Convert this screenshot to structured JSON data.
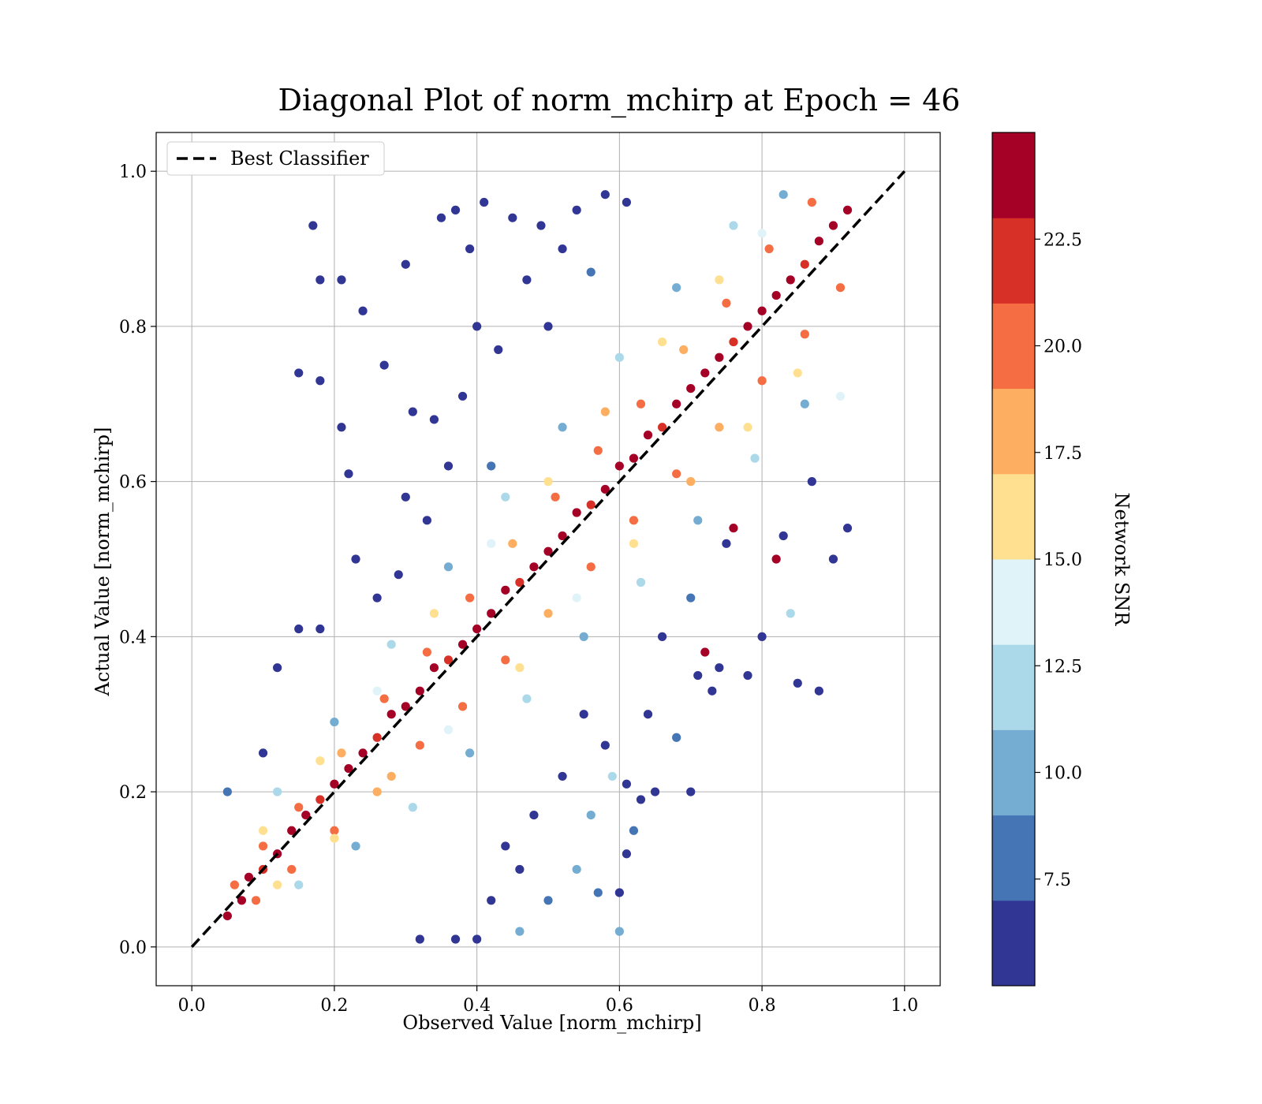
{
  "chart_data": {
    "type": "scatter",
    "title": "Diagonal Plot of norm_mchirp at Epoch = 46",
    "xlabel": "Observed Value [norm_mchirp]",
    "ylabel": "Actual Value [norm_mchirp]",
    "xlim": [
      -0.05,
      1.05
    ],
    "ylim": [
      -0.05,
      1.05
    ],
    "xticks": [
      "0.0",
      "0.2",
      "0.4",
      "0.6",
      "0.8",
      "1.0"
    ],
    "yticks": [
      "0.0",
      "0.2",
      "0.4",
      "0.6",
      "0.8",
      "1.0"
    ],
    "grid": true,
    "legend": {
      "position": "top-left",
      "entries": [
        "Best Classifier"
      ]
    },
    "reference_line": {
      "label": "Best Classifier",
      "style": "dashed",
      "color": "#000000",
      "x": [
        0,
        1
      ],
      "y": [
        0,
        1
      ]
    },
    "colorbar": {
      "label": "Network SNR",
      "min": 5,
      "max": 25,
      "ticks": [
        "7.5",
        "10.0",
        "12.5",
        "15.0",
        "17.5",
        "20.0",
        "22.5"
      ],
      "colors": [
        "#313695",
        "#4575b4",
        "#74add1",
        "#abd9e9",
        "#e0f3f8",
        "#fee090",
        "#fdae61",
        "#f46d43",
        "#d73027",
        "#a50026"
      ]
    },
    "points": [
      [
        0.05,
        0.04,
        24
      ],
      [
        0.07,
        0.06,
        23
      ],
      [
        0.08,
        0.09,
        24
      ],
      [
        0.1,
        0.1,
        22
      ],
      [
        0.12,
        0.12,
        24
      ],
      [
        0.14,
        0.15,
        23
      ],
      [
        0.16,
        0.17,
        24
      ],
      [
        0.18,
        0.19,
        21
      ],
      [
        0.2,
        0.21,
        24
      ],
      [
        0.22,
        0.23,
        23
      ],
      [
        0.24,
        0.25,
        24
      ],
      [
        0.26,
        0.27,
        22
      ],
      [
        0.28,
        0.3,
        24
      ],
      [
        0.3,
        0.31,
        23
      ],
      [
        0.32,
        0.33,
        24
      ],
      [
        0.34,
        0.36,
        24
      ],
      [
        0.36,
        0.37,
        22
      ],
      [
        0.38,
        0.39,
        24
      ],
      [
        0.4,
        0.41,
        23
      ],
      [
        0.42,
        0.43,
        24
      ],
      [
        0.44,
        0.46,
        24
      ],
      [
        0.46,
        0.47,
        21
      ],
      [
        0.48,
        0.49,
        24
      ],
      [
        0.5,
        0.51,
        23
      ],
      [
        0.52,
        0.53,
        24
      ],
      [
        0.54,
        0.56,
        24
      ],
      [
        0.56,
        0.57,
        22
      ],
      [
        0.58,
        0.59,
        24
      ],
      [
        0.6,
        0.62,
        23
      ],
      [
        0.62,
        0.63,
        24
      ],
      [
        0.64,
        0.66,
        24
      ],
      [
        0.66,
        0.67,
        22
      ],
      [
        0.68,
        0.7,
        24
      ],
      [
        0.7,
        0.72,
        23
      ],
      [
        0.72,
        0.74,
        24
      ],
      [
        0.74,
        0.76,
        24
      ],
      [
        0.76,
        0.78,
        21
      ],
      [
        0.78,
        0.8,
        24
      ],
      [
        0.8,
        0.82,
        23
      ],
      [
        0.82,
        0.84,
        24
      ],
      [
        0.84,
        0.86,
        24
      ],
      [
        0.86,
        0.88,
        22
      ],
      [
        0.88,
        0.91,
        24
      ],
      [
        0.9,
        0.93,
        23
      ],
      [
        0.92,
        0.95,
        24
      ],
      [
        0.06,
        0.08,
        20
      ],
      [
        0.1,
        0.13,
        19
      ],
      [
        0.15,
        0.18,
        20
      ],
      [
        0.21,
        0.25,
        18
      ],
      [
        0.27,
        0.32,
        20
      ],
      [
        0.33,
        0.38,
        19
      ],
      [
        0.39,
        0.45,
        20
      ],
      [
        0.45,
        0.52,
        18
      ],
      [
        0.51,
        0.58,
        20
      ],
      [
        0.57,
        0.64,
        19
      ],
      [
        0.63,
        0.7,
        20
      ],
      [
        0.69,
        0.77,
        18
      ],
      [
        0.75,
        0.83,
        20
      ],
      [
        0.81,
        0.9,
        19
      ],
      [
        0.87,
        0.96,
        20
      ],
      [
        0.09,
        0.06,
        20
      ],
      [
        0.14,
        0.1,
        19
      ],
      [
        0.2,
        0.15,
        20
      ],
      [
        0.26,
        0.2,
        18
      ],
      [
        0.32,
        0.26,
        20
      ],
      [
        0.38,
        0.31,
        19
      ],
      [
        0.44,
        0.37,
        20
      ],
      [
        0.5,
        0.43,
        18
      ],
      [
        0.56,
        0.49,
        20
      ],
      [
        0.62,
        0.55,
        19
      ],
      [
        0.68,
        0.61,
        20
      ],
      [
        0.74,
        0.67,
        18
      ],
      [
        0.8,
        0.73,
        20
      ],
      [
        0.86,
        0.79,
        19
      ],
      [
        0.91,
        0.85,
        20
      ],
      [
        0.12,
        0.08,
        16
      ],
      [
        0.2,
        0.14,
        15
      ],
      [
        0.28,
        0.22,
        17
      ],
      [
        0.36,
        0.28,
        14
      ],
      [
        0.46,
        0.36,
        16
      ],
      [
        0.54,
        0.45,
        13
      ],
      [
        0.62,
        0.52,
        16
      ],
      [
        0.7,
        0.6,
        17
      ],
      [
        0.78,
        0.67,
        15
      ],
      [
        0.85,
        0.74,
        16
      ],
      [
        0.1,
        0.15,
        16
      ],
      [
        0.18,
        0.24,
        15
      ],
      [
        0.26,
        0.33,
        13
      ],
      [
        0.34,
        0.43,
        16
      ],
      [
        0.42,
        0.52,
        14
      ],
      [
        0.5,
        0.6,
        16
      ],
      [
        0.58,
        0.69,
        17
      ],
      [
        0.66,
        0.78,
        15
      ],
      [
        0.74,
        0.86,
        16
      ],
      [
        0.8,
        0.92,
        13
      ],
      [
        0.15,
        0.08,
        11
      ],
      [
        0.23,
        0.13,
        10
      ],
      [
        0.31,
        0.18,
        12
      ],
      [
        0.39,
        0.25,
        9
      ],
      [
        0.47,
        0.32,
        11
      ],
      [
        0.55,
        0.4,
        10
      ],
      [
        0.63,
        0.47,
        12
      ],
      [
        0.71,
        0.55,
        9
      ],
      [
        0.79,
        0.63,
        11
      ],
      [
        0.86,
        0.7,
        10
      ],
      [
        0.12,
        0.2,
        11
      ],
      [
        0.2,
        0.29,
        10
      ],
      [
        0.28,
        0.39,
        12
      ],
      [
        0.36,
        0.49,
        9
      ],
      [
        0.44,
        0.58,
        11
      ],
      [
        0.52,
        0.67,
        10
      ],
      [
        0.6,
        0.76,
        12
      ],
      [
        0.68,
        0.85,
        9
      ],
      [
        0.76,
        0.93,
        11
      ],
      [
        0.83,
        0.97,
        10
      ],
      [
        0.17,
        0.93,
        6
      ],
      [
        0.18,
        0.86,
        6
      ],
      [
        0.21,
        0.86,
        6
      ],
      [
        0.15,
        0.74,
        6
      ],
      [
        0.18,
        0.73,
        6
      ],
      [
        0.22,
        0.61,
        6
      ],
      [
        0.21,
        0.67,
        6
      ],
      [
        0.24,
        0.82,
        6
      ],
      [
        0.27,
        0.75,
        6
      ],
      [
        0.3,
        0.88,
        6
      ],
      [
        0.31,
        0.69,
        6
      ],
      [
        0.35,
        0.94,
        6
      ],
      [
        0.37,
        0.95,
        6
      ],
      [
        0.39,
        0.9,
        6
      ],
      [
        0.41,
        0.96,
        6
      ],
      [
        0.45,
        0.94,
        6
      ],
      [
        0.49,
        0.93,
        6
      ],
      [
        0.54,
        0.95,
        6
      ],
      [
        0.58,
        0.97,
        6
      ],
      [
        0.61,
        0.96,
        6
      ],
      [
        0.33,
        0.55,
        6
      ],
      [
        0.36,
        0.62,
        6
      ],
      [
        0.29,
        0.48,
        6
      ],
      [
        0.26,
        0.45,
        6
      ],
      [
        0.23,
        0.5,
        6
      ],
      [
        0.15,
        0.41,
        6
      ],
      [
        0.18,
        0.41,
        6
      ],
      [
        0.12,
        0.36,
        6
      ],
      [
        0.1,
        0.25,
        6
      ],
      [
        0.05,
        0.2,
        8
      ],
      [
        0.4,
        0.8,
        6
      ],
      [
        0.43,
        0.77,
        6
      ],
      [
        0.47,
        0.86,
        6
      ],
      [
        0.5,
        0.8,
        6
      ],
      [
        0.52,
        0.9,
        6
      ],
      [
        0.56,
        0.87,
        8
      ],
      [
        0.38,
        0.71,
        6
      ],
      [
        0.34,
        0.68,
        6
      ],
      [
        0.3,
        0.58,
        6
      ],
      [
        0.42,
        0.62,
        8
      ],
      [
        0.37,
        0.01,
        6
      ],
      [
        0.4,
        0.01,
        6
      ],
      [
        0.32,
        0.01,
        6
      ],
      [
        0.46,
        0.02,
        10
      ],
      [
        0.6,
        0.02,
        10
      ],
      [
        0.42,
        0.06,
        6
      ],
      [
        0.46,
        0.1,
        6
      ],
      [
        0.5,
        0.06,
        8
      ],
      [
        0.54,
        0.1,
        10
      ],
      [
        0.57,
        0.07,
        8
      ],
      [
        0.6,
        0.07,
        6
      ],
      [
        0.61,
        0.12,
        6
      ],
      [
        0.63,
        0.19,
        6
      ],
      [
        0.65,
        0.2,
        6
      ],
      [
        0.62,
        0.15,
        8
      ],
      [
        0.68,
        0.27,
        8
      ],
      [
        0.7,
        0.2,
        6
      ],
      [
        0.71,
        0.35,
        6
      ],
      [
        0.74,
        0.36,
        6
      ],
      [
        0.78,
        0.35,
        6
      ],
      [
        0.8,
        0.4,
        6
      ],
      [
        0.85,
        0.34,
        6
      ],
      [
        0.88,
        0.33,
        6
      ],
      [
        0.84,
        0.43,
        12
      ],
      [
        0.9,
        0.5,
        6
      ],
      [
        0.83,
        0.53,
        6
      ],
      [
        0.87,
        0.6,
        6
      ],
      [
        0.92,
        0.54,
        6
      ],
      [
        0.91,
        0.71,
        14
      ],
      [
        0.82,
        0.5,
        24
      ],
      [
        0.55,
        0.3,
        6
      ],
      [
        0.58,
        0.26,
        6
      ],
      [
        0.52,
        0.22,
        6
      ],
      [
        0.48,
        0.17,
        6
      ],
      [
        0.44,
        0.13,
        6
      ],
      [
        0.66,
        0.4,
        6
      ],
      [
        0.64,
        0.3,
        6
      ],
      [
        0.7,
        0.45,
        8
      ],
      [
        0.75,
        0.52,
        6
      ],
      [
        0.72,
        0.38,
        24
      ],
      [
        0.76,
        0.54,
        24
      ],
      [
        0.73,
        0.33,
        6
      ],
      [
        0.61,
        0.21,
        6
      ],
      [
        0.59,
        0.22,
        12
      ],
      [
        0.56,
        0.17,
        10
      ]
    ]
  }
}
